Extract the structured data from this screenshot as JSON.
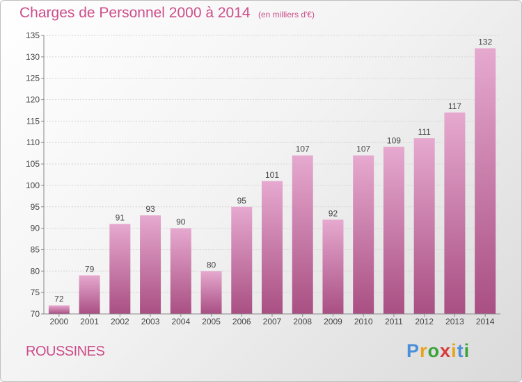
{
  "header": {
    "title": "Charges de Personnel 2000 à 2014",
    "subtitle": "(en milliers d'€)"
  },
  "footer": {
    "place": "ROUSSINES",
    "logo_letters": [
      "P",
      "r",
      "o",
      "x",
      "i",
      "t",
      "i"
    ]
  },
  "colors": {
    "title": "#cc4d8a",
    "bar_top": "#e6a9cf",
    "bar_bottom": "#a94f83",
    "logo": [
      "#4a90d9",
      "#e8a317",
      "#3aa33a",
      "#d93a3a",
      "#e8a317",
      "#4a90d9",
      "#3aa33a"
    ]
  },
  "chart_data": {
    "type": "bar",
    "title": "Charges de Personnel 2000 à 2014",
    "xlabel": "",
    "ylabel": "",
    "categories": [
      "2000",
      "2001",
      "2002",
      "2003",
      "2004",
      "2005",
      "2006",
      "2007",
      "2008",
      "2009",
      "2010",
      "2011",
      "2012",
      "2013",
      "2014"
    ],
    "values": [
      72,
      79,
      91,
      93,
      90,
      80,
      95,
      101,
      107,
      92,
      107,
      109,
      111,
      117,
      132
    ],
    "ylim": [
      70,
      135
    ],
    "yticks": [
      70,
      75,
      80,
      85,
      90,
      95,
      100,
      105,
      110,
      115,
      120,
      125,
      130,
      135
    ],
    "grid": true
  }
}
